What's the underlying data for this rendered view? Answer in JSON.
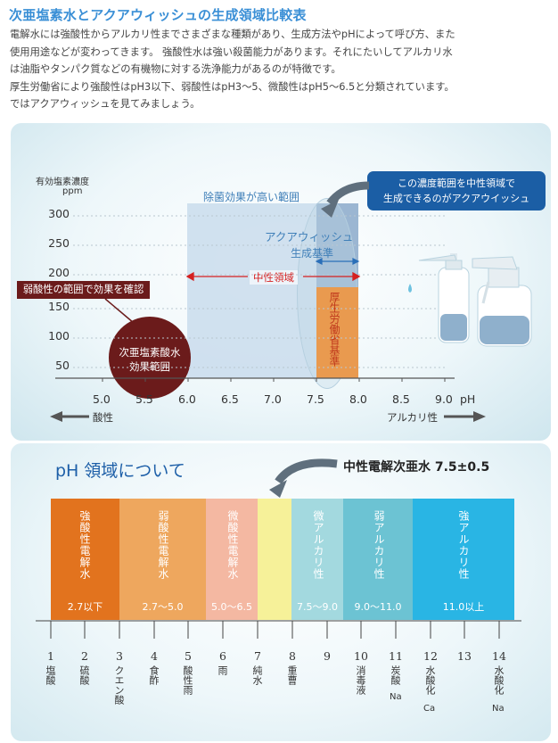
{
  "title": "次亜塩素水とアクアウィッシュの生成領域比較表",
  "intro": [
    "電解水には強酸性からアルカリ性までさまざまな種類があり、生成方法やpHによって呼び方、また",
    "使用用途などが変わってきます。 強酸性水は強い殺菌能力があります。それにたいしてアルカリ水",
    "は油脂やタンパク質などの有機物に対する洗浄能力があるのが特徴です。",
    "厚生労働省により強酸性はpH3以下、弱酸性はpH3～5、微酸性はpH5～6.5と分類されています。",
    "ではアクアウィッシュを見てみましょう。"
  ],
  "chart": {
    "ylabel": "有効塩素濃度",
    "yunit": "ppm",
    "yticks": [
      "300",
      "250",
      "200",
      "150",
      "100",
      "50"
    ],
    "xticks": [
      "5.0",
      "5.5",
      "6.0",
      "6.5",
      "7.0",
      "7.5",
      "8.0",
      "8.5",
      "9.0"
    ],
    "xunit": "pH",
    "acid_label": "酸性",
    "alkali_label": "アルカリ性",
    "high_effect_label": "除菌効果が高い範囲",
    "aqua_label_1": "アクアウィッシュ",
    "aqua_label_2": "生成基準",
    "neutral_label": "中性領域",
    "mhlw_label": "厚生労働省基準",
    "weak_acid_box": "弱酸性の範囲で効果を確認",
    "circle_line1": "次亜塩素酸水",
    "circle_line2": "効果範囲",
    "callout_line1": "この濃度範囲を中性領域で",
    "callout_line2": "生成できるのがアクアウイッシュ"
  },
  "ph_section": {
    "heading": "pH 領域について",
    "neutral_note": "中性電解次亜水 7.5±0.5",
    "bands": [
      {
        "label": "強酸性電解水",
        "range": "2.7以下",
        "color": "#e2731e"
      },
      {
        "label": "弱酸性電解水",
        "range": "2.7〜5.0",
        "color": "#eea75e"
      },
      {
        "label": "微酸性電解水",
        "range": "5.0〜6.5",
        "color": "#f4b8a2"
      },
      {
        "label": "",
        "range": "",
        "color": "#f6f199"
      },
      {
        "label": "微アルカリ性",
        "range": "7.5〜9.0",
        "color": "#a3d9df"
      },
      {
        "label": "弱アルカリ性",
        "range": "9.0〜11.0",
        "color": "#6cc3d3"
      },
      {
        "label": "強アルカリ性",
        "range": "11.0以上",
        "color": "#29b5e4"
      }
    ],
    "numbers": [
      "1",
      "2",
      "3",
      "4",
      "5",
      "6",
      "7",
      "8",
      "9",
      "10",
      "11",
      "12",
      "13",
      "14"
    ],
    "substances": [
      {
        "text": "塩酸",
        "extra": ""
      },
      {
        "text": "硫酸",
        "extra": ""
      },
      {
        "text": "クエン酸",
        "extra": ""
      },
      {
        "text": "食酢",
        "extra": ""
      },
      {
        "text": "酸性雨",
        "extra": ""
      },
      {
        "text": "雨",
        "extra": ""
      },
      {
        "text": "純水",
        "extra": ""
      },
      {
        "text": "重曹",
        "extra": ""
      },
      {
        "text": "消毒液",
        "extra": ""
      },
      {
        "text": "炭酸",
        "extra": "Na"
      },
      {
        "text": "水酸化",
        "extra": "Ca"
      },
      {
        "text": "水酸化",
        "extra": "Na"
      }
    ]
  }
}
